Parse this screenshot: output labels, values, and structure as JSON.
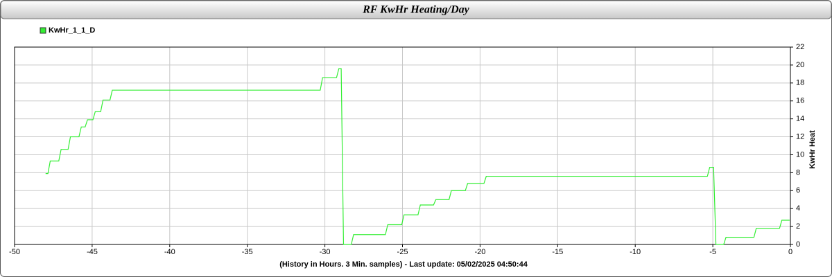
{
  "chart_data": {
    "type": "line",
    "title": "RF KwHr Heating/Day",
    "xlabel": "(History in Hours. 3 Min. samples) - Last update: 05/02/2025 04:50:44",
    "ylabel": "KwHr Heat",
    "x": [
      -48.0,
      -47.85,
      -47.7,
      -47.15,
      -47.0,
      -46.55,
      -46.4,
      -45.85,
      -45.7,
      -45.45,
      -45.3,
      -44.95,
      -44.8,
      -44.45,
      -44.3,
      -43.85,
      -43.7,
      -30.3,
      -30.15,
      -29.25,
      -29.1,
      -28.95,
      -28.8,
      -28.3,
      -28.15,
      -26.1,
      -25.95,
      -25.05,
      -24.9,
      -24.0,
      -23.85,
      -23.0,
      -22.85,
      -22.0,
      -21.85,
      -20.95,
      -20.8,
      -19.75,
      -19.6,
      -5.35,
      -5.2,
      -4.95,
      -4.8,
      -4.3,
      -4.15,
      -2.35,
      -2.2,
      -0.7,
      -0.55,
      -0.05
    ],
    "series": [
      {
        "name": "KwHr_1_1_D",
        "color": "#33ee33",
        "values": [
          7.9,
          7.9,
          9.3,
          9.3,
          10.6,
          10.6,
          12.0,
          12.0,
          13.1,
          13.1,
          13.9,
          13.9,
          14.8,
          14.8,
          16.1,
          16.1,
          17.2,
          17.2,
          18.6,
          18.6,
          19.6,
          19.6,
          0,
          0,
          1.1,
          1.1,
          2.2,
          2.2,
          3.3,
          3.3,
          4.4,
          4.4,
          5.0,
          5.0,
          6.0,
          6.0,
          6.8,
          6.8,
          7.6,
          7.6,
          8.6,
          8.6,
          0,
          0,
          0.8,
          0.8,
          1.8,
          1.8,
          2.7,
          2.7
        ]
      }
    ],
    "xlim": [
      -50,
      0
    ],
    "xticks": [
      -50,
      -45,
      -40,
      -35,
      -30,
      -25,
      -20,
      -15,
      -10,
      -5,
      0
    ],
    "ylim": [
      0,
      22
    ],
    "yticks": [
      0,
      2,
      4,
      6,
      8,
      10,
      12,
      14,
      16,
      18,
      20,
      22
    ],
    "grid": true,
    "legend": "top-left"
  }
}
